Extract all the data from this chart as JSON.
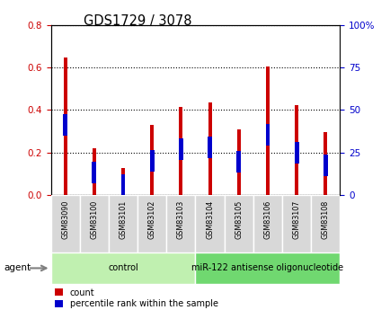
{
  "title": "GDS1729 / 3078",
  "samples": [
    "GSM83090",
    "GSM83100",
    "GSM83101",
    "GSM83102",
    "GSM83103",
    "GSM83104",
    "GSM83105",
    "GSM83106",
    "GSM83107",
    "GSM83108"
  ],
  "count_values": [
    0.645,
    0.222,
    0.127,
    0.33,
    0.415,
    0.435,
    0.308,
    0.605,
    0.423,
    0.297
  ],
  "percentile_values": [
    0.33,
    0.108,
    0.048,
    0.163,
    0.215,
    0.225,
    0.158,
    0.285,
    0.2,
    0.14
  ],
  "groups": [
    {
      "label": "control",
      "start": 0,
      "end": 5,
      "color": "#c0f0b0"
    },
    {
      "label": "miR-122 antisense oligonucleotide",
      "start": 5,
      "end": 10,
      "color": "#70d870"
    }
  ],
  "ylim_left": [
    0,
    0.8
  ],
  "ylim_right": [
    0,
    100
  ],
  "yticks_left": [
    0.0,
    0.2,
    0.4,
    0.6,
    0.8
  ],
  "yticks_right": [
    0,
    25,
    50,
    75,
    100
  ],
  "ytick_labels_right": [
    "0",
    "25",
    "50",
    "75",
    "100%"
  ],
  "bar_color_red": "#cc0000",
  "bar_color_blue": "#0000cc",
  "red_bar_width": 0.12,
  "blue_bar_width": 0.1,
  "grid_color": "black",
  "agent_label": "agent",
  "legend_count_label": "count",
  "legend_percentile_label": "percentile rank within the sample",
  "left_tick_color": "#cc0000",
  "right_tick_color": "#0000cc",
  "sample_box_color": "#d8d8d8",
  "plot_bg": "white"
}
